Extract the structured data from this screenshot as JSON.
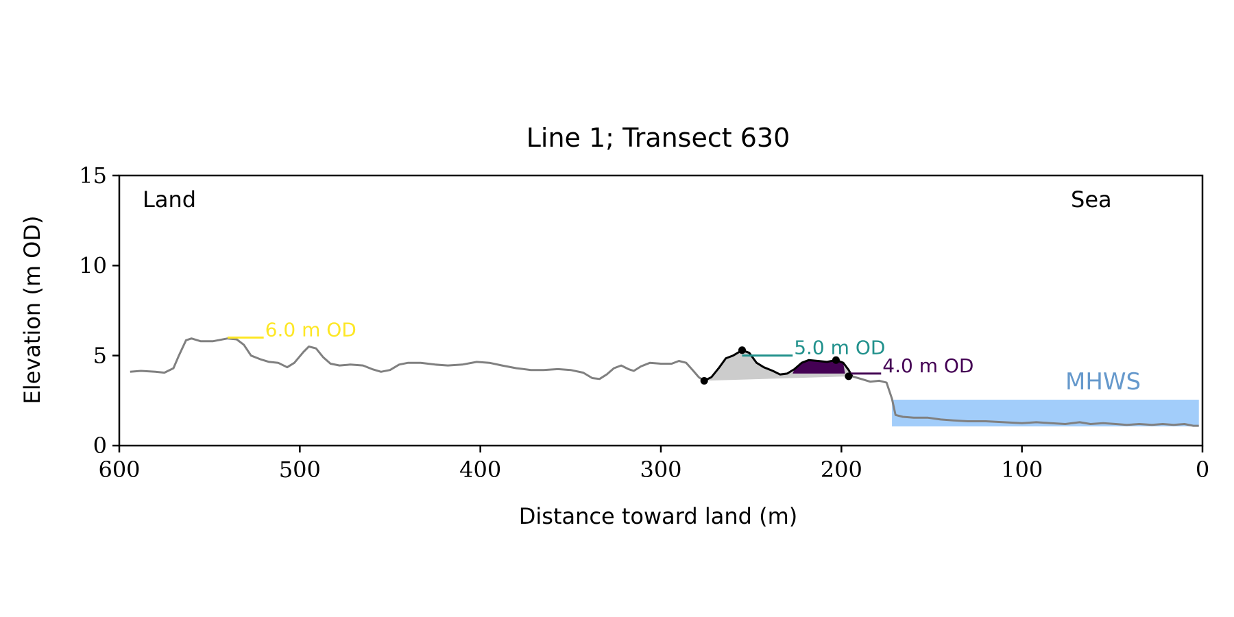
{
  "chart_data": {
    "type": "line",
    "title": "Line 1; Transect 630",
    "xlabel": "Distance toward land (m)",
    "ylabel": "Elevation (m OD)",
    "xlim": [
      600,
      0
    ],
    "ylim": [
      0,
      15
    ],
    "x_ticks": [
      "600",
      "500",
      "400",
      "300",
      "200",
      "100",
      "0"
    ],
    "y_ticks": [
      "0",
      "5",
      "10",
      "15"
    ],
    "annotations": {
      "land": "Land",
      "sea": "Sea",
      "mhws": "MHWS"
    },
    "colors": {
      "profile": "#808080",
      "dune": "#000000",
      "dune_fill": "#cccccc",
      "level_6": "#fde725",
      "level_5": "#21918c",
      "level_4": "#440154",
      "water": "#a2cdfa",
      "mhws_text": "#6699cc"
    },
    "series": [
      {
        "values": [
          [
            594,
            4.1
          ],
          [
            588,
            4.15
          ],
          [
            580,
            4.1
          ],
          [
            575,
            4.05
          ],
          [
            570,
            4.3
          ],
          [
            567,
            5.0
          ],
          [
            563,
            5.85
          ],
          [
            560,
            5.95
          ],
          [
            555,
            5.8
          ],
          [
            548,
            5.8
          ],
          [
            540,
            5.95
          ],
          [
            535,
            5.9
          ],
          [
            531,
            5.6
          ],
          [
            527,
            5.0
          ],
          [
            522,
            4.8
          ],
          [
            517,
            4.65
          ],
          [
            512,
            4.6
          ],
          [
            507,
            4.35
          ],
          [
            503,
            4.6
          ],
          [
            498,
            5.2
          ],
          [
            495,
            5.5
          ],
          [
            491,
            5.4
          ],
          [
            487,
            4.9
          ],
          [
            483,
            4.55
          ],
          [
            478,
            4.45
          ],
          [
            472,
            4.5
          ],
          [
            465,
            4.45
          ],
          [
            460,
            4.25
          ],
          [
            455,
            4.1
          ],
          [
            450,
            4.2
          ],
          [
            445,
            4.5
          ],
          [
            440,
            4.6
          ],
          [
            433,
            4.6
          ],
          [
            425,
            4.5
          ],
          [
            418,
            4.45
          ],
          [
            410,
            4.5
          ],
          [
            402,
            4.65
          ],
          [
            395,
            4.6
          ],
          [
            388,
            4.45
          ],
          [
            380,
            4.3
          ],
          [
            372,
            4.2
          ],
          [
            365,
            4.2
          ],
          [
            357,
            4.25
          ],
          [
            350,
            4.2
          ],
          [
            343,
            4.05
          ],
          [
            338,
            3.75
          ],
          [
            334,
            3.7
          ],
          [
            330,
            3.95
          ],
          [
            326,
            4.3
          ],
          [
            322,
            4.45
          ],
          [
            318,
            4.25
          ],
          [
            315,
            4.15
          ],
          [
            311,
            4.4
          ],
          [
            306,
            4.6
          ],
          [
            300,
            4.55
          ],
          [
            294,
            4.55
          ],
          [
            290,
            4.7
          ],
          [
            286,
            4.6
          ],
          [
            282,
            4.15
          ],
          [
            279,
            3.8
          ],
          [
            276,
            3.6
          ]
        ]
      },
      {
        "values": [
          [
            276,
            3.6
          ],
          [
            272,
            3.8
          ],
          [
            268,
            4.3
          ],
          [
            264,
            4.85
          ],
          [
            260,
            5.0
          ],
          [
            255,
            5.3
          ],
          [
            251,
            5.15
          ],
          [
            247,
            4.6
          ],
          [
            243,
            4.35
          ],
          [
            238,
            4.15
          ],
          [
            234,
            3.95
          ],
          [
            230,
            4.0
          ],
          [
            226,
            4.25
          ],
          [
            222,
            4.6
          ],
          [
            218,
            4.75
          ],
          [
            213,
            4.7
          ],
          [
            208,
            4.65
          ],
          [
            203,
            4.75
          ],
          [
            199,
            4.6
          ],
          [
            196,
            4.2
          ],
          [
            194,
            3.85
          ]
        ]
      },
      {
        "values": [
          [
            194,
            3.85
          ],
          [
            189,
            3.7
          ],
          [
            184,
            3.55
          ],
          [
            179,
            3.6
          ],
          [
            175,
            3.5
          ],
          [
            172,
            2.6
          ],
          [
            170,
            1.7
          ],
          [
            166,
            1.6
          ],
          [
            160,
            1.55
          ],
          [
            152,
            1.55
          ],
          [
            145,
            1.45
          ],
          [
            138,
            1.4
          ],
          [
            130,
            1.35
          ],
          [
            120,
            1.35
          ],
          [
            110,
            1.3
          ],
          [
            100,
            1.25
          ],
          [
            92,
            1.3
          ],
          [
            84,
            1.25
          ],
          [
            76,
            1.2
          ],
          [
            68,
            1.3
          ],
          [
            62,
            1.2
          ],
          [
            55,
            1.25
          ],
          [
            48,
            1.2
          ],
          [
            42,
            1.15
          ],
          [
            35,
            1.2
          ],
          [
            28,
            1.15
          ],
          [
            22,
            1.2
          ],
          [
            16,
            1.15
          ],
          [
            10,
            1.2
          ],
          [
            5,
            1.1
          ],
          [
            2,
            1.1
          ]
        ]
      }
    ],
    "dune_polygon": [
      [
        276,
        3.6
      ],
      [
        194,
        3.85
      ]
    ],
    "dune_points": [
      [
        276,
        3.6
      ],
      [
        255,
        5.3
      ],
      [
        203,
        4.75
      ],
      [
        196,
        3.85
      ]
    ],
    "levels": [
      {
        "elevation": 6.0,
        "x_start": 540,
        "x_end": 520,
        "label": "6.0 m OD",
        "color_key": "level_6"
      },
      {
        "elevation": 5.0,
        "x_start": 255,
        "x_end": 227,
        "label": "5.0 m OD",
        "color_key": "level_5"
      },
      {
        "elevation": 4.0,
        "x_start": 196,
        "x_end": 178,
        "label": "4.0 m OD",
        "color_key": "level_4"
      }
    ],
    "water": {
      "x_start": 172,
      "x_end": 2,
      "y_top": 2.55
    },
    "purple_fill": {
      "x_start": 227,
      "x_end": 198,
      "level": 4.0
    }
  }
}
